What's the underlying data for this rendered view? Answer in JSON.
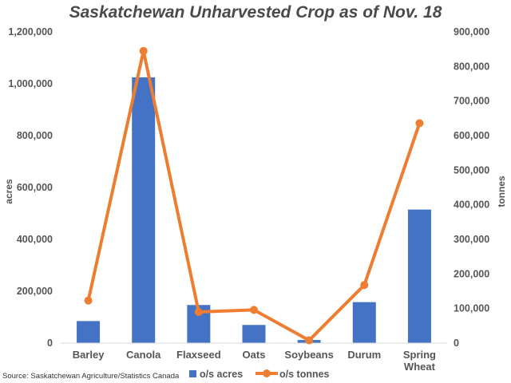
{
  "chart_data": {
    "type": "bar",
    "title": "Saskatchewan Unharvested Crop as of Nov. 18",
    "source": "Source: Saskatchewan Agriculture/Statistics Canada",
    "categories": [
      [
        "Barley"
      ],
      [
        "Canola"
      ],
      [
        "Flaxseed"
      ],
      [
        "Oats"
      ],
      [
        "Soybeans"
      ],
      [
        "Durum"
      ],
      [
        "Spring",
        "Wheat"
      ]
    ],
    "ylabel": "acres",
    "y2label": "tonnes",
    "ylim": [
      0,
      1200000
    ],
    "y2lim": [
      0,
      900000
    ],
    "yticks": [
      "0",
      "200,000",
      "400,000",
      "600,000",
      "800,000",
      "1,000,000",
      "1,200,000"
    ],
    "y2ticks": [
      "0",
      "100,000",
      "200,000",
      "300,000",
      "400,000",
      "500,000",
      "600,000",
      "700,000",
      "800,000",
      "900,000"
    ],
    "series": [
      {
        "name": "o/s acres",
        "type": "bar",
        "axis": "left",
        "color": "#4472C4",
        "values": [
          85000,
          1025000,
          147000,
          70000,
          12000,
          158000,
          515000
        ]
      },
      {
        "name": "o/s tonnes",
        "type": "line",
        "axis": "right",
        "color": "#ED7D31",
        "values": [
          123000,
          845000,
          90000,
          96000,
          8000,
          168000,
          636000
        ]
      }
    ],
    "legend": "bottom",
    "grid": false
  }
}
